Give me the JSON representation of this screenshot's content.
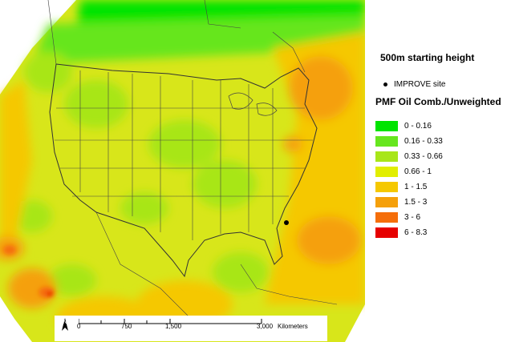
{
  "map": {
    "starting_height": "500m starting height",
    "site_legend_label": "IMPROVE site",
    "legend_title": "PMF Oil Comb./Unweighted",
    "legend": [
      {
        "range": "0 - 0.16",
        "color": "#00e400"
      },
      {
        "range": "0.16 - 0.33",
        "color": "#66e61e"
      },
      {
        "range": "0.33 - 0.66",
        "color": "#a8e619"
      },
      {
        "range": "0.66 - 1",
        "color": "#e1ee00"
      },
      {
        "range": "1 - 1.5",
        "color": "#f5c800"
      },
      {
        "range": "1.5 - 3",
        "color": "#f5a00a"
      },
      {
        "range": "3 - 6",
        "color": "#f56e0a"
      },
      {
        "range": "6 - 8.3",
        "color": "#e60000"
      }
    ],
    "scale_bar": {
      "labels": [
        "0",
        "750",
        "1,500",
        "3,000"
      ],
      "unit": "Kilometers"
    },
    "north_arrow_label": "N"
  }
}
